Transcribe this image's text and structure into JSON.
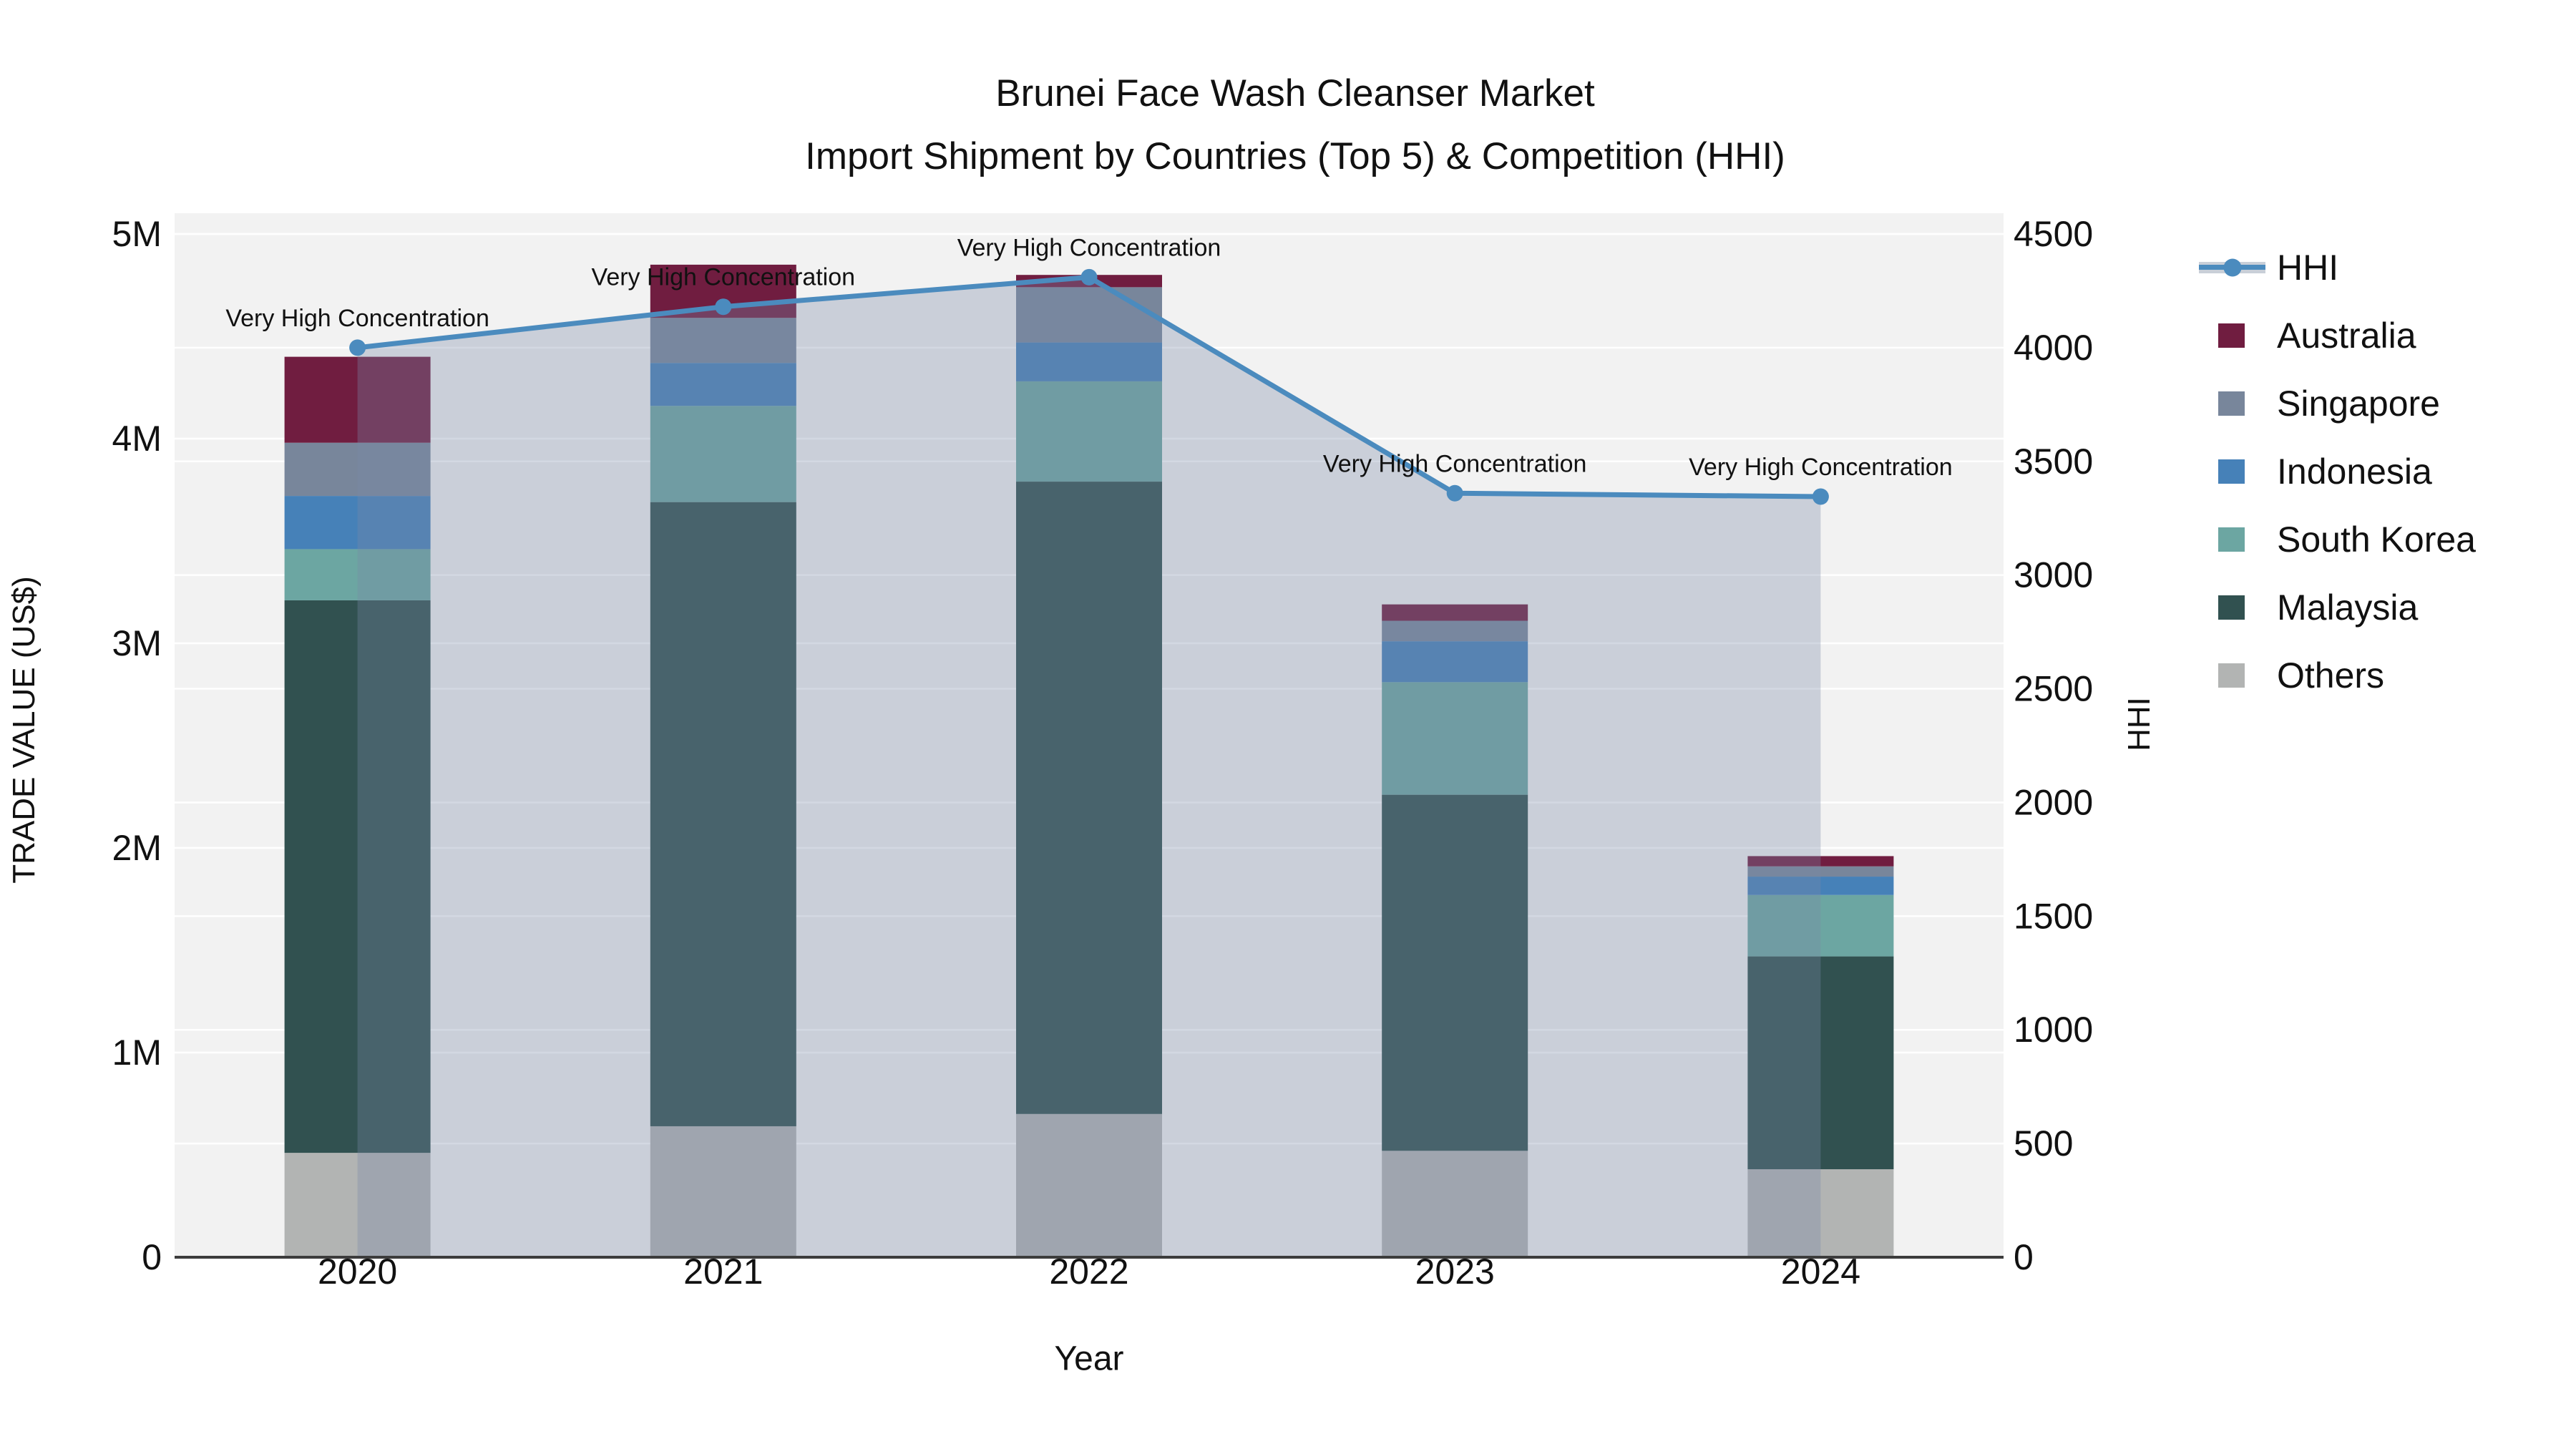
{
  "page": {
    "background": "#ffffff"
  },
  "chart_data": {
    "type": "bar+line",
    "title": "Brunei Face Wash Cleanser Market",
    "subtitle": "Import Shipment by Countries (Top 5) & Competition (HHI)",
    "xlabel": "Year",
    "ylabel": "TRADE VALUE (US$)",
    "y2label": "HHI",
    "plot_bgcolor": "#f2f2f2",
    "gridline_color": "#ffffff",
    "axisline_color": "#3c3c3c",
    "text_color": "#111111",
    "categories": [
      "2020",
      "2021",
      "2022",
      "2023",
      "2024"
    ],
    "bar_value_unit": "million US$",
    "series": [
      {
        "name": "Others",
        "color": "#b2b4b3",
        "values": [
          0.51,
          0.64,
          0.7,
          0.52,
          0.43
        ]
      },
      {
        "name": "Malaysia",
        "color": "#315150",
        "values": [
          2.7,
          3.05,
          3.09,
          1.74,
          1.04
        ]
      },
      {
        "name": "South Korea",
        "color": "#6ca6a2",
        "values": [
          0.25,
          0.47,
          0.49,
          0.55,
          0.3
        ]
      },
      {
        "name": "Indonesia",
        "color": "#4681b8",
        "values": [
          0.26,
          0.21,
          0.19,
          0.2,
          0.09
        ]
      },
      {
        "name": "Singapore",
        "color": "#78869b",
        "values": [
          0.26,
          0.22,
          0.27,
          0.1,
          0.05
        ]
      },
      {
        "name": "Australia",
        "color": "#701d40",
        "values": [
          0.42,
          0.26,
          0.06,
          0.08,
          0.05
        ]
      }
    ],
    "line": {
      "name": "HHI",
      "color": "#4b8bbe",
      "area_fill_color": "rgba(122,138,166,0.33)",
      "legend_band_color": "#c9cfd8",
      "values": [
        4000,
        4180,
        4310,
        3360,
        3345
      ]
    },
    "annotations": [
      "Very High Concentration",
      "Very High Concentration",
      "Very High Concentration",
      "Very High Concentration",
      "Very High Concentration"
    ],
    "y_axis": {
      "ticks": [
        "0",
        "1M",
        "2M",
        "3M",
        "4M",
        "5M"
      ],
      "tick_values": [
        0,
        1,
        2,
        3,
        4,
        5
      ],
      "range_musd": [
        0,
        5.1
      ],
      "grid_values": [
        1,
        2,
        3,
        4,
        5
      ]
    },
    "y2_axis": {
      "ticks": [
        "0",
        "500",
        "1000",
        "1500",
        "2000",
        "2500",
        "3000",
        "3500",
        "4000",
        "4500"
      ],
      "tick_values": [
        0,
        500,
        1000,
        1500,
        2000,
        2500,
        3000,
        3500,
        4000,
        4500
      ],
      "range": [
        0,
        4590
      ],
      "grid_values": [
        500,
        1000,
        1500,
        2000,
        2500,
        3000,
        3500,
        4000,
        4500
      ]
    },
    "legend": [
      {
        "kind": "line",
        "label": "HHI",
        "color": "#4b8bbe"
      },
      {
        "kind": "swatch",
        "label": "Australia",
        "color": "#701d40"
      },
      {
        "kind": "swatch",
        "label": "Singapore",
        "color": "#78869b"
      },
      {
        "kind": "swatch",
        "label": "Indonesia",
        "color": "#4681b8"
      },
      {
        "kind": "swatch",
        "label": "South Korea",
        "color": "#6ca6a2"
      },
      {
        "kind": "swatch",
        "label": "Malaysia",
        "color": "#315150"
      },
      {
        "kind": "swatch",
        "label": "Others",
        "color": "#b2b4b3"
      }
    ]
  }
}
